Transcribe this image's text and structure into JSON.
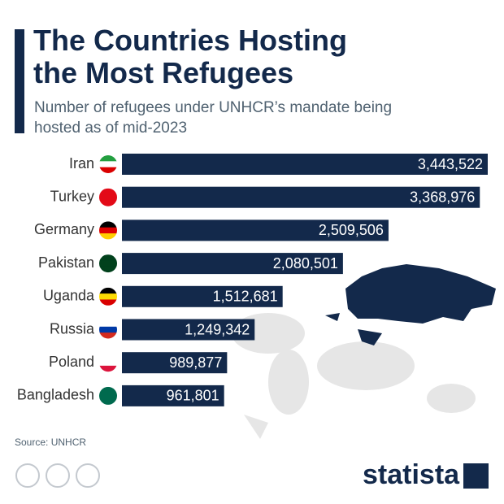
{
  "chart_data": {
    "type": "bar",
    "orientation": "horizontal",
    "title": "The Countries Hosting the Most Refugees",
    "subtitle": "Number of refugees under UNHCR’s mandate being hosted as of mid-2023",
    "categories": [
      "Iran",
      "Turkey",
      "Germany",
      "Pakistan",
      "Uganda",
      "Russia",
      "Poland",
      "Bangladesh"
    ],
    "values": [
      3443522,
      3368976,
      2509506,
      2080501,
      1512681,
      1249342,
      989877,
      961801
    ],
    "value_labels": [
      "3,443,522",
      "3,368,976",
      "2,509,506",
      "2,080,501",
      "1,512,681",
      "1,249,342",
      "989,877",
      "961,801"
    ],
    "color": "#13294b",
    "source": "Source: UNHCR",
    "logo": "statista"
  }
}
